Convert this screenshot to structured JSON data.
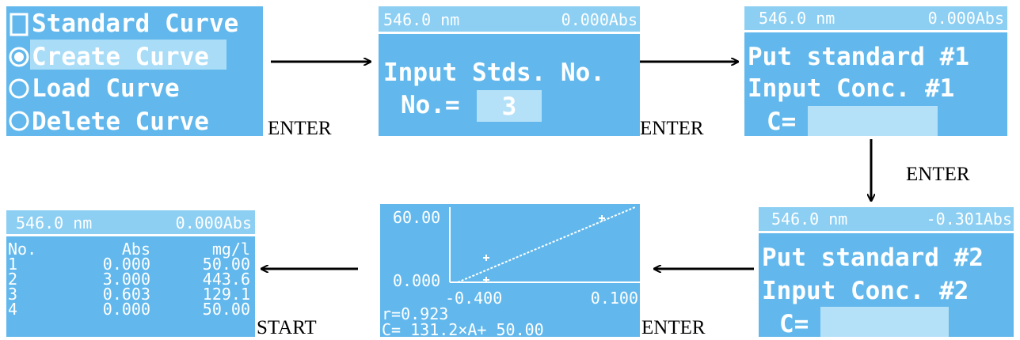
{
  "screens": [
    {
      "lines": [
        "Standard Curve",
        "Create Curve",
        "Load Curve",
        "Delete Curve"
      ]
    },
    {
      "header": [
        "546.0 nm",
        "0.000Abs"
      ],
      "lines": [
        "Input Stds. No.",
        "No.="
      ],
      "field": "3"
    },
    {
      "header": [
        "546.0 nm",
        "0.000Abs"
      ],
      "lines": [
        "Put standard #1",
        "Input Conc. #1",
        "C="
      ]
    },
    {
      "header": [
        "546.0 nm",
        "-0.301Abs"
      ],
      "lines": [
        "Put standard #2",
        "Input Conc. #2",
        "C="
      ]
    },
    {
      "y_top": "60.00",
      "y_bottom": "0.000",
      "x_left": "-0.400",
      "x_right": "0.100",
      "r": "r=0.923",
      "equation": "C= 131.2×A+ 50.00"
    },
    {
      "header": [
        "546.0 nm",
        "0.000Abs"
      ],
      "columns": [
        "No.",
        "Abs",
        "mg/l"
      ],
      "rows": [
        [
          "1",
          "0.000",
          "50.00"
        ],
        [
          "2",
          "3.000",
          "443.6"
        ],
        [
          "3",
          "0.603",
          "129.1"
        ],
        [
          "4",
          "0.000",
          "50.00"
        ]
      ]
    }
  ],
  "transitions": [
    "ENTER",
    "ENTER",
    "ENTER",
    "ENTER",
    "START"
  ]
}
